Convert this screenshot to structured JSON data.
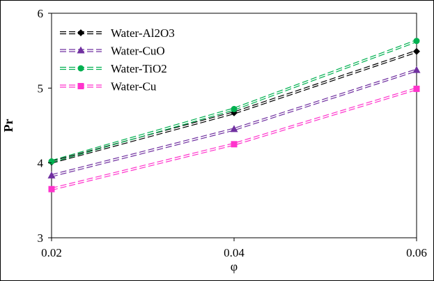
{
  "chart_data": {
    "type": "line",
    "xlabel": "φ",
    "ylabel": "Pr",
    "xlim": [
      0.02,
      0.06
    ],
    "ylim": [
      3,
      6
    ],
    "x": [
      0.02,
      0.04,
      0.06
    ],
    "x_tick_labels": [
      "0.02",
      "0.04",
      "0.06"
    ],
    "y_ticks": [
      3,
      4,
      5,
      6
    ],
    "y_tick_labels": [
      "3",
      "4",
      "5",
      "6"
    ],
    "grid": false,
    "legend_position": "top-left",
    "series": [
      {
        "name": "Water-Al2O3",
        "values": [
          4.01,
          4.67,
          5.49
        ],
        "color": "#000000",
        "marker": "diamond"
      },
      {
        "name": "Water-CuO",
        "values": [
          3.83,
          4.45,
          5.24
        ],
        "color": "#7030A0",
        "marker": "triangle"
      },
      {
        "name": "Water-TiO2",
        "values": [
          4.02,
          4.72,
          5.63
        ],
        "color": "#00B050",
        "marker": "circle"
      },
      {
        "name": "Water-Cu",
        "values": [
          3.65,
          4.25,
          4.99
        ],
        "color": "#FF33CC",
        "marker": "square"
      }
    ]
  }
}
